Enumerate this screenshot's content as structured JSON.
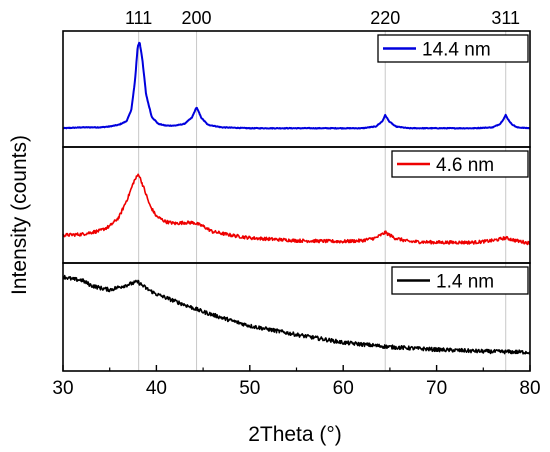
{
  "chart_data": {
    "type": "line",
    "xlabel": "2Theta (°)",
    "ylabel": "Intensity (counts)",
    "xlim": [
      30,
      80
    ],
    "xticks": [
      "30",
      "40",
      "50",
      "60",
      "70",
      "80"
    ],
    "peak_labels": [
      {
        "label": "111",
        "x": 38.1
      },
      {
        "label": "200",
        "x": 44.3
      },
      {
        "label": "220",
        "x": 64.5
      },
      {
        "label": "311",
        "x": 77.4
      }
    ],
    "panels": [
      {
        "series_name": "14.4 nm",
        "color": "#0000dd",
        "x": [
          30,
          32,
          34,
          35,
          36,
          36.8,
          37.3,
          37.7,
          38.0,
          38.2,
          38.5,
          38.9,
          39.5,
          40.2,
          41,
          42,
          43,
          43.8,
          44.3,
          44.8,
          45.5,
          47,
          50,
          55,
          60,
          62,
          63.5,
          64.2,
          64.5,
          64.9,
          65.6,
          67,
          70,
          74,
          76,
          76.8,
          77.2,
          77.4,
          77.6,
          78,
          78.6,
          80
        ],
        "y": [
          0.02,
          0.03,
          0.03,
          0.04,
          0.06,
          0.1,
          0.22,
          0.55,
          0.95,
          1.0,
          0.8,
          0.4,
          0.15,
          0.07,
          0.05,
          0.05,
          0.07,
          0.14,
          0.26,
          0.14,
          0.06,
          0.03,
          0.02,
          0.02,
          0.02,
          0.02,
          0.04,
          0.1,
          0.17,
          0.1,
          0.04,
          0.02,
          0.02,
          0.02,
          0.03,
          0.07,
          0.13,
          0.17,
          0.13,
          0.07,
          0.03,
          0.02
        ]
      },
      {
        "series_name": "4.6 nm",
        "color": "#ee0000",
        "x": [
          30,
          32,
          34,
          35,
          36,
          37,
          37.6,
          38.1,
          38.6,
          39.3,
          40,
          41,
          42,
          43,
          44,
          45,
          46,
          48,
          50,
          55,
          60,
          62,
          63.5,
          64.5,
          65.5,
          67,
          70,
          74,
          76,
          77.4,
          78.5,
          80
        ],
        "y": [
          0.12,
          0.13,
          0.17,
          0.22,
          0.32,
          0.55,
          0.72,
          0.8,
          0.66,
          0.45,
          0.33,
          0.27,
          0.25,
          0.26,
          0.26,
          0.22,
          0.16,
          0.12,
          0.09,
          0.06,
          0.05,
          0.06,
          0.09,
          0.15,
          0.09,
          0.05,
          0.04,
          0.04,
          0.06,
          0.09,
          0.06,
          0.03
        ]
      },
      {
        "series_name": "1.4 nm",
        "color": "#000000",
        "x": [
          30,
          31,
          32,
          33,
          34,
          35,
          36,
          37,
          38,
          38.5,
          39,
          40,
          42,
          45,
          48,
          50,
          55,
          60,
          65,
          70,
          75,
          80
        ],
        "y": [
          0.88,
          0.85,
          0.84,
          0.78,
          0.75,
          0.73,
          0.76,
          0.79,
          0.82,
          0.78,
          0.74,
          0.68,
          0.6,
          0.48,
          0.38,
          0.32,
          0.22,
          0.13,
          0.08,
          0.05,
          0.03,
          0.02
        ]
      }
    ]
  }
}
